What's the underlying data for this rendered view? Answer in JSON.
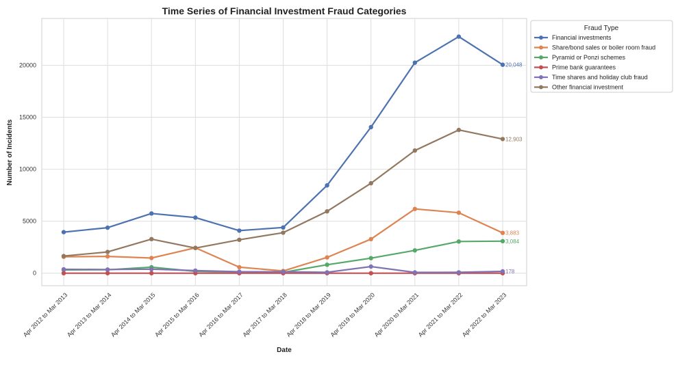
{
  "chart_data": {
    "type": "line",
    "title": "Time Series of Financial Investment Fraud Categories",
    "xlabel": "Date",
    "ylabel": "Number of Incidents",
    "ylim": [
      -1200,
      24500
    ],
    "yticks": [
      0,
      5000,
      10000,
      15000,
      20000
    ],
    "grid": true,
    "legend": {
      "title": "Fraud Type",
      "placement": "outside-top-right"
    },
    "categories": [
      "Apr 2012 to Mar 2013",
      "Apr 2013 to Mar 2014",
      "Apr 2014 to Mar 2015",
      "Apr 2015 to Mar 2016",
      "Apr 2016 to Mar 2017",
      "Apr 2017 to Mar 2018",
      "Apr 2018 to Mar 2019",
      "Apr 2019 to Mar 2020",
      "Apr 2020 to Mar 2021",
      "Apr 2021 to Mar 2022",
      "Apr 2022 to Mar 2023"
    ],
    "series": [
      {
        "name": "Financial investments",
        "color": "#4C72B0",
        "values": [
          3950,
          4380,
          5750,
          5350,
          4100,
          4400,
          8450,
          14050,
          20250,
          22750,
          20048
        ],
        "end_label": "20,048"
      },
      {
        "name": "Share/bond sales or boiler room fraud",
        "color": "#DD8452",
        "values": [
          1580,
          1620,
          1460,
          2450,
          580,
          220,
          1520,
          3280,
          6180,
          5820,
          3883
        ],
        "end_label": "3,883"
      },
      {
        "name": "Pyramid or Ponzi schemes",
        "color": "#55A868",
        "values": [
          320,
          330,
          580,
          180,
          120,
          80,
          820,
          1450,
          2200,
          3050,
          3084
        ],
        "end_label": "3,084"
      },
      {
        "name": "Prime bank guarantees",
        "color": "#C44E52",
        "values": [
          0,
          0,
          0,
          0,
          0,
          0,
          0,
          0,
          0,
          0,
          0
        ],
        "end_label": null
      },
      {
        "name": "Time shares and holiday club fraud",
        "color": "#8172B3",
        "values": [
          380,
          360,
          390,
          250,
          150,
          140,
          90,
          640,
          80,
          90,
          178
        ],
        "end_label": "178"
      },
      {
        "name": "Other financial investment",
        "color": "#937860",
        "values": [
          1650,
          2050,
          3280,
          2420,
          3220,
          3900,
          5950,
          8650,
          11800,
          13780,
          12903
        ],
        "end_label": "12,903"
      }
    ]
  }
}
